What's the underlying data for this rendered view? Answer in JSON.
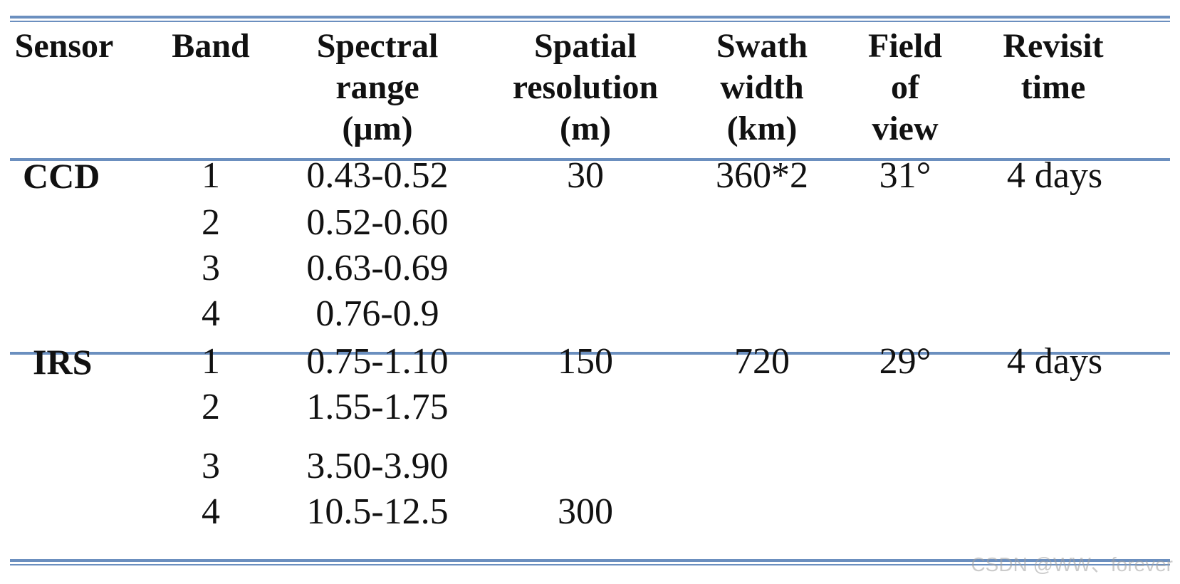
{
  "table": {
    "headers": {
      "sensor": "Sensor",
      "band": "Band",
      "spectral": "Spectral\nrange\n(μm)",
      "spatial": "Spatial\nresolution\n(m)",
      "swath": "Swath\nwidth\n(km)",
      "fov": "Field\nof\nview",
      "revisit": "Revisit\ntime"
    },
    "groups": [
      {
        "sensor": "CCD",
        "swath": "360*2",
        "fov": "31°",
        "revisit": "4 days",
        "rows": [
          {
            "band": "1",
            "spectral": "0.43-0.52",
            "spatial": "30"
          },
          {
            "band": "2",
            "spectral": "0.52-0.60",
            "spatial": ""
          },
          {
            "band": "3",
            "spectral": "0.63-0.69",
            "spatial": ""
          },
          {
            "band": "4",
            "spectral": "0.76-0.9",
            "spatial": ""
          }
        ]
      },
      {
        "sensor": "IRS",
        "swath": "720",
        "fov": "29°",
        "revisit": "4 days",
        "rows": [
          {
            "band": "1",
            "spectral": "0.75-1.10",
            "spatial": "150"
          },
          {
            "band": "2",
            "spectral": "1.55-1.75",
            "spatial": ""
          },
          {
            "band": "3",
            "spectral": "3.50-3.90",
            "spatial": ""
          },
          {
            "band": "4",
            "spectral": "10.5-12.5",
            "spatial": "300"
          }
        ]
      }
    ]
  },
  "watermark": "CSDN @WW、forever"
}
